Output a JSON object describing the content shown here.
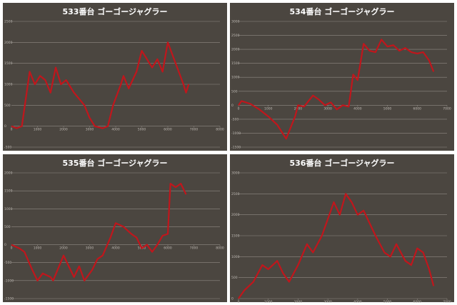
{
  "chart_data": [
    {
      "type": "line",
      "title": "533番台 ゴーゴージャグラー",
      "color": "#c0161c",
      "grid": true,
      "x": [
        0,
        200,
        400,
        700,
        900,
        1100,
        1300,
        1500,
        1700,
        1900,
        2100,
        2400,
        2800,
        3000,
        3200,
        3500,
        3700,
        3900,
        4200,
        4300,
        4500,
        4800,
        5000,
        5200,
        5400,
        5600,
        5800,
        6000,
        6300,
        6600,
        6700,
        6800
      ],
      "values": [
        0,
        -50,
        0,
        1300,
        1000,
        1200,
        1100,
        800,
        1400,
        1000,
        1100,
        800,
        500,
        200,
        0,
        -50,
        0,
        500,
        1000,
        1200,
        900,
        1300,
        1800,
        1600,
        1400,
        1600,
        1300,
        2000,
        1500,
        1000,
        800,
        1000
      ],
      "xlim": [
        0,
        8000
      ],
      "xticks": [
        0,
        1000,
        2000,
        3000,
        4000,
        5000,
        6000,
        7000,
        8000
      ],
      "ylim": [
        -500,
        2500
      ],
      "yticks": [
        -500,
        0,
        500,
        1000,
        1500,
        2000,
        2500
      ]
    },
    {
      "type": "line",
      "title": "534番台 ゴーゴージャグラー",
      "color": "#c0161c",
      "grid": true,
      "x": [
        0,
        100,
        400,
        700,
        1000,
        1300,
        1600,
        1900,
        2000,
        2200,
        2500,
        2700,
        2900,
        3100,
        3300,
        3500,
        3700,
        3850,
        4000,
        4200,
        4400,
        4600,
        4800,
        5000,
        5200,
        5400,
        5600,
        5800,
        6000,
        6200,
        6400,
        6550
      ],
      "values": [
        0,
        150,
        50,
        -150,
        -400,
        -700,
        -1200,
        -400,
        0,
        -50,
        350,
        200,
        0,
        100,
        -150,
        0,
        -50,
        1100,
        900,
        2200,
        1950,
        1900,
        2350,
        2100,
        2150,
        1950,
        2050,
        1900,
        1850,
        1900,
        1600,
        1200
      ],
      "xlim": [
        0,
        7000
      ],
      "xticks": [
        0,
        1000,
        2000,
        3000,
        4000,
        5000,
        6000,
        7000
      ],
      "ylim": [
        -1500,
        3000
      ],
      "yticks": [
        -1500,
        -1000,
        -500,
        0,
        500,
        1000,
        1500,
        2000,
        2500,
        3000
      ]
    },
    {
      "type": "line",
      "title": "535番台 ゴーゴージャグラー",
      "color": "#c0161c",
      "grid": true,
      "x": [
        0,
        300,
        500,
        800,
        1000,
        1200,
        1500,
        1600,
        2000,
        2200,
        2400,
        2600,
        2800,
        3100,
        3300,
        3500,
        3800,
        4000,
        4300,
        4600,
        4800,
        5000,
        5200,
        5400,
        5600,
        5800,
        6000,
        6100,
        6300,
        6500,
        6700
      ],
      "values": [
        0,
        -100,
        -200,
        -700,
        -1000,
        -800,
        -900,
        -1000,
        -300,
        -600,
        -900,
        -600,
        -1000,
        -700,
        -400,
        -300,
        200,
        600,
        500,
        300,
        200,
        -100,
        0,
        -200,
        0,
        250,
        300,
        1700,
        1600,
        1700,
        1400
      ],
      "xlim": [
        0,
        8000
      ],
      "xticks": [
        0,
        1000,
        2000,
        3000,
        4000,
        5000,
        6000,
        7000,
        8000
      ],
      "ylim": [
        -1500,
        2000
      ],
      "yticks": [
        -1500,
        -1000,
        -500,
        0,
        500,
        1000,
        1500,
        2000
      ]
    },
    {
      "type": "line",
      "title": "536番台 ゴーゴージャグラー",
      "color": "#c0161c",
      "grid": true,
      "x": [
        0,
        200,
        500,
        800,
        1000,
        1300,
        1500,
        1700,
        2000,
        2300,
        2500,
        2800,
        3000,
        3200,
        3400,
        3600,
        3800,
        4000,
        4200,
        4400,
        4600,
        4900,
        5100,
        5300,
        5600,
        5800,
        6000,
        6200,
        6400,
        6550
      ],
      "values": [
        0,
        200,
        400,
        800,
        700,
        900,
        600,
        400,
        800,
        1300,
        1100,
        1500,
        1900,
        2300,
        2000,
        2500,
        2300,
        2000,
        2100,
        1800,
        1500,
        1100,
        1000,
        1300,
        900,
        800,
        1200,
        1100,
        700,
        300
      ],
      "xlim": [
        0,
        7000
      ],
      "xticks": [
        0,
        1000,
        2000,
        3000,
        4000,
        5000,
        6000,
        7000
      ],
      "ylim": [
        0,
        3000
      ],
      "yticks": [
        0,
        500,
        1000,
        1500,
        2000,
        2500,
        3000
      ]
    }
  ]
}
